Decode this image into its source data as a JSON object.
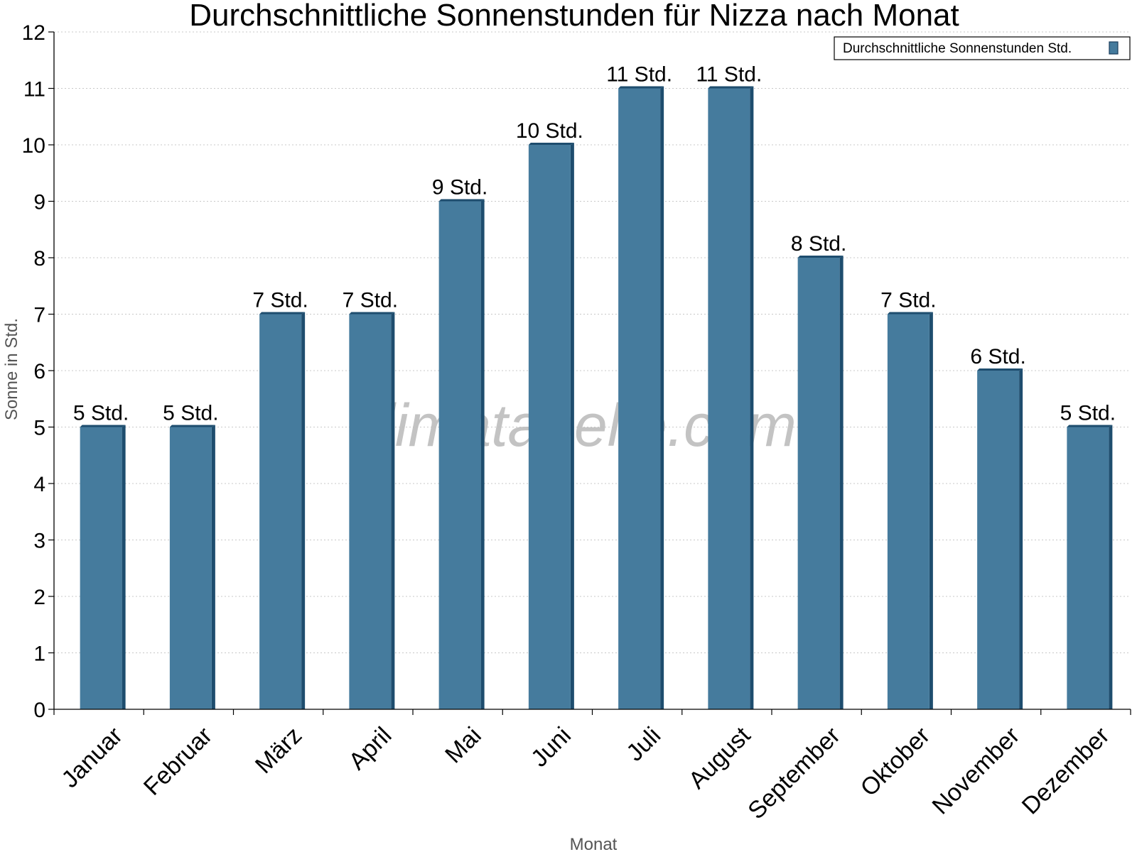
{
  "watermark": "klimatabelle.com",
  "chart_data": {
    "type": "bar",
    "title": "Durchschnittliche Sonnenstunden für Nizza nach Monat",
    "xlabel": "Monat",
    "ylabel": "Sonne in Std.",
    "ylim": [
      0,
      12
    ],
    "yticks": [
      "0",
      "1",
      "2",
      "3",
      "4",
      "5",
      "6",
      "7",
      "8",
      "9",
      "10",
      "11",
      "12"
    ],
    "grid": true,
    "legend_position": "top-right",
    "categories": [
      "Januar",
      "Februar",
      "März",
      "April",
      "Mai",
      "Juni",
      "Juli",
      "August",
      "September",
      "Oktober",
      "November",
      "Dezember"
    ],
    "series": [
      {
        "name": "Durchschnittliche Sonnenstunden Std.",
        "color": "#457b9d",
        "values": [
          5,
          5,
          7,
          7,
          9,
          10,
          11,
          11,
          8,
          7,
          6,
          5
        ],
        "labels": [
          "5 Std.",
          "5 Std.",
          "7 Std.",
          "7 Std.",
          "9 Std.",
          "10 Std.",
          "11 Std.",
          "11 Std.",
          "8 Std.",
          "7 Std.",
          "6 Std.",
          "5 Std."
        ]
      }
    ]
  }
}
